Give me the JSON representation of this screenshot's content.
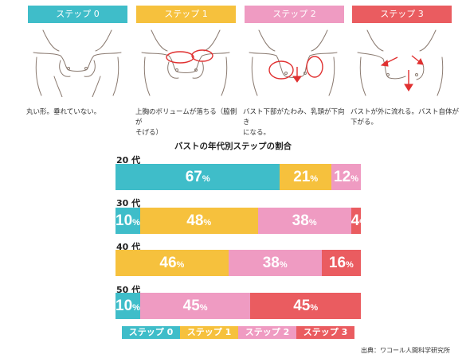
{
  "colors": {
    "step0": "#3fbdc9",
    "step1": "#f6c13d",
    "step2": "#ef9bc2",
    "step3": "#ea5c60",
    "highlight": "#e03030"
  },
  "steps": [
    {
      "label": "ステップ 0",
      "desc_lines": [
        "丸い形。垂れていない。"
      ]
    },
    {
      "label": "ステップ 1",
      "desc_lines": [
        "上胸のボリュームが落ちる（脇側が",
        "そげる）"
      ]
    },
    {
      "label": "ステップ 2",
      "desc_lines": [
        "バスト下部がたわみ、乳頭が下向き",
        "になる。"
      ]
    },
    {
      "label": "ステップ 3",
      "desc_lines": [
        "バストが外に流れる。バスト自体が",
        "下がる。"
      ]
    }
  ],
  "chart_data": {
    "type": "bar",
    "orientation": "horizontal-stacked-100",
    "title": "バストの年代別ステップの割合",
    "categories": [
      "20 代",
      "30 代",
      "40 代",
      "50 代"
    ],
    "unit": "%",
    "series": [
      {
        "name": "ステップ 0",
        "values": [
          67,
          10,
          0,
          10
        ]
      },
      {
        "name": "ステップ 1",
        "values": [
          21,
          48,
          46,
          0
        ]
      },
      {
        "name": "ステップ 2",
        "values": [
          12,
          38,
          38,
          45
        ]
      },
      {
        "name": "ステップ 3",
        "values": [
          0,
          4,
          16,
          45
        ]
      }
    ],
    "legend_position": "bottom"
  },
  "source": "出典：ワコール人間科学研究所"
}
